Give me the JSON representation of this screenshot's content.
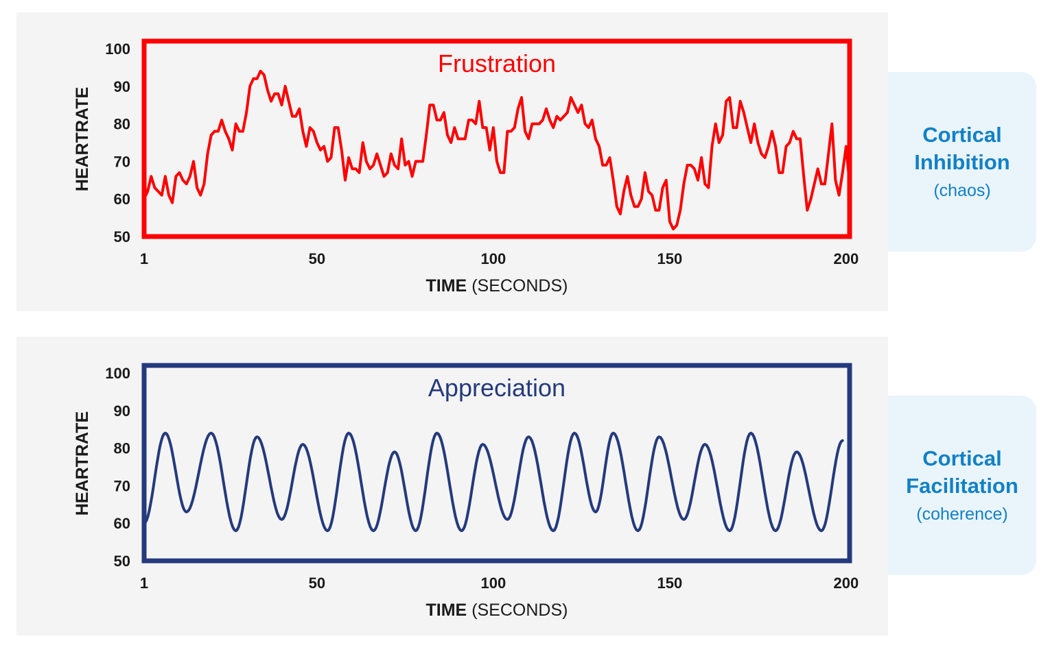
{
  "colors": {
    "frustration": "#ff0000",
    "appreciation": "#243a7d",
    "side_text": "#1181c6"
  },
  "sides": [
    {
      "line1": "Cortical",
      "line2": "Inhibition",
      "line3": "(chaos)"
    },
    {
      "line1": "Cortical",
      "line2": "Facilitation",
      "line3": "(coherence)"
    }
  ],
  "chart_data": [
    {
      "type": "line",
      "title": "Frustration",
      "ylabel": "HEARTRATE",
      "xlabel_bold": "TIME",
      "xlabel_normal": "(SECONDS)",
      "xlim": [
        1,
        201
      ],
      "ylim": [
        50,
        102
      ],
      "xticks": [
        1,
        50,
        100,
        150,
        200
      ],
      "yticks": [
        50,
        60,
        70,
        80,
        90,
        100
      ],
      "grid": false,
      "series": [
        {
          "x": [
            1,
            2,
            3,
            4,
            5,
            6,
            7,
            8,
            9,
            10,
            11,
            12,
            13,
            14,
            15,
            16,
            17,
            18,
            19,
            20,
            21,
            22,
            23,
            24,
            25,
            26,
            27,
            28,
            29,
            30,
            31,
            32,
            33,
            34,
            35,
            36,
            37,
            38,
            39,
            40,
            41,
            42,
            43,
            44,
            45,
            46,
            47,
            48,
            49,
            50,
            51,
            52,
            53,
            54,
            55,
            56,
            57,
            58,
            59,
            60,
            61,
            62,
            63,
            64,
            65,
            66,
            67,
            68,
            69,
            70,
            71,
            72,
            73,
            74,
            75,
            76,
            77,
            78,
            79,
            80,
            81,
            82,
            83,
            84,
            85,
            86,
            87,
            88,
            89,
            90,
            91,
            92,
            93,
            94,
            95,
            96,
            97,
            98,
            99,
            100,
            101,
            102,
            103,
            104,
            105,
            106,
            107,
            108,
            109,
            110,
            111,
            112,
            113,
            114,
            115,
            116,
            117,
            118,
            119,
            120,
            121,
            122,
            123,
            124,
            125,
            126,
            127,
            128,
            129,
            130,
            131,
            132,
            133,
            134,
            135,
            136,
            137,
            138,
            139,
            140,
            141,
            142,
            143,
            144,
            145,
            146,
            147,
            148,
            149,
            150,
            151,
            152,
            153,
            154,
            155,
            156,
            157,
            158,
            159,
            160,
            161,
            162,
            163,
            164,
            165,
            166,
            167,
            168,
            169,
            170,
            171,
            172,
            173,
            174,
            175,
            176,
            177,
            178,
            179,
            180,
            181,
            182,
            183,
            184,
            185,
            186,
            187,
            188,
            189,
            190,
            191,
            192,
            193,
            194,
            195,
            196,
            197,
            198,
            199,
            200,
            201
          ],
          "y": [
            60,
            62,
            66,
            63,
            62,
            61,
            66,
            61,
            59,
            66,
            67,
            65,
            64,
            66,
            70,
            63,
            61,
            64,
            72,
            77,
            78,
            78,
            81,
            78,
            76,
            73,
            80,
            78,
            78,
            83,
            90,
            92,
            92,
            94,
            93,
            89,
            86,
            88,
            88,
            85,
            90,
            86,
            82,
            82,
            84,
            78,
            74,
            79,
            78,
            75,
            73,
            74,
            70,
            71,
            79,
            79,
            73,
            65,
            71,
            68,
            68,
            67,
            75,
            70,
            68,
            69,
            72,
            69,
            66,
            67,
            72,
            69,
            68,
            76,
            69,
            70,
            66,
            70,
            70,
            70,
            77,
            85,
            85,
            81,
            81,
            83,
            77,
            75,
            79,
            76,
            76,
            76,
            81,
            81,
            80,
            86,
            79,
            79,
            73,
            79,
            70,
            67,
            67,
            78,
            78,
            79,
            84,
            87,
            78,
            76,
            80,
            80,
            80,
            81,
            84,
            81,
            79,
            82,
            81,
            82,
            83,
            87,
            85,
            83,
            85,
            80,
            79,
            81,
            76,
            74,
            69,
            69,
            71,
            65,
            58,
            56,
            62,
            66,
            61,
            58,
            58,
            60,
            67,
            62,
            61,
            57,
            57,
            63,
            65,
            54,
            52,
            53,
            57,
            64,
            69,
            69,
            68,
            65,
            71,
            64,
            63,
            74,
            80,
            75,
            77,
            86,
            87,
            79,
            79,
            86,
            83,
            79,
            75,
            80,
            75,
            72,
            71,
            74,
            78,
            74,
            67,
            67,
            74,
            75,
            78,
            76,
            76,
            66,
            57,
            60,
            64,
            68,
            64,
            64,
            72,
            80,
            65,
            61,
            67,
            74,
            64
          ]
        }
      ]
    },
    {
      "type": "line",
      "title": "Appreciation",
      "ylabel": "HEARTRATE",
      "xlabel_bold": "TIME",
      "xlabel_normal": "(SECONDS)",
      "xlim": [
        1,
        201
      ],
      "ylim": [
        50,
        102
      ],
      "xticks": [
        1,
        50,
        100,
        150,
        200
      ],
      "yticks": [
        50,
        60,
        70,
        80,
        90,
        100
      ],
      "grid": false,
      "series": [
        {
          "peaks": [
            [
              7,
              84
            ],
            [
              20,
              84
            ],
            [
              33,
              83
            ],
            [
              46,
              81
            ],
            [
              59,
              84
            ],
            [
              72,
              79
            ],
            [
              84,
              84
            ],
            [
              97,
              81
            ],
            [
              110,
              83
            ],
            [
              123,
              84
            ],
            [
              134,
              84
            ],
            [
              147,
              83
            ],
            [
              160,
              81
            ],
            [
              173,
              84
            ],
            [
              186,
              79
            ],
            [
              199,
              82
            ]
          ],
          "troughs": [
            [
              1,
              60
            ],
            [
              13,
              63
            ],
            [
              27,
              58
            ],
            [
              40,
              61
            ],
            [
              53,
              58
            ],
            [
              66,
              58
            ],
            [
              78,
              58
            ],
            [
              91,
              58
            ],
            [
              104,
              61
            ],
            [
              117,
              58
            ],
            [
              129,
              63
            ],
            [
              141,
              58
            ],
            [
              154,
              61
            ],
            [
              167,
              58
            ],
            [
              180,
              58
            ],
            [
              193,
              58
            ]
          ]
        }
      ]
    }
  ]
}
